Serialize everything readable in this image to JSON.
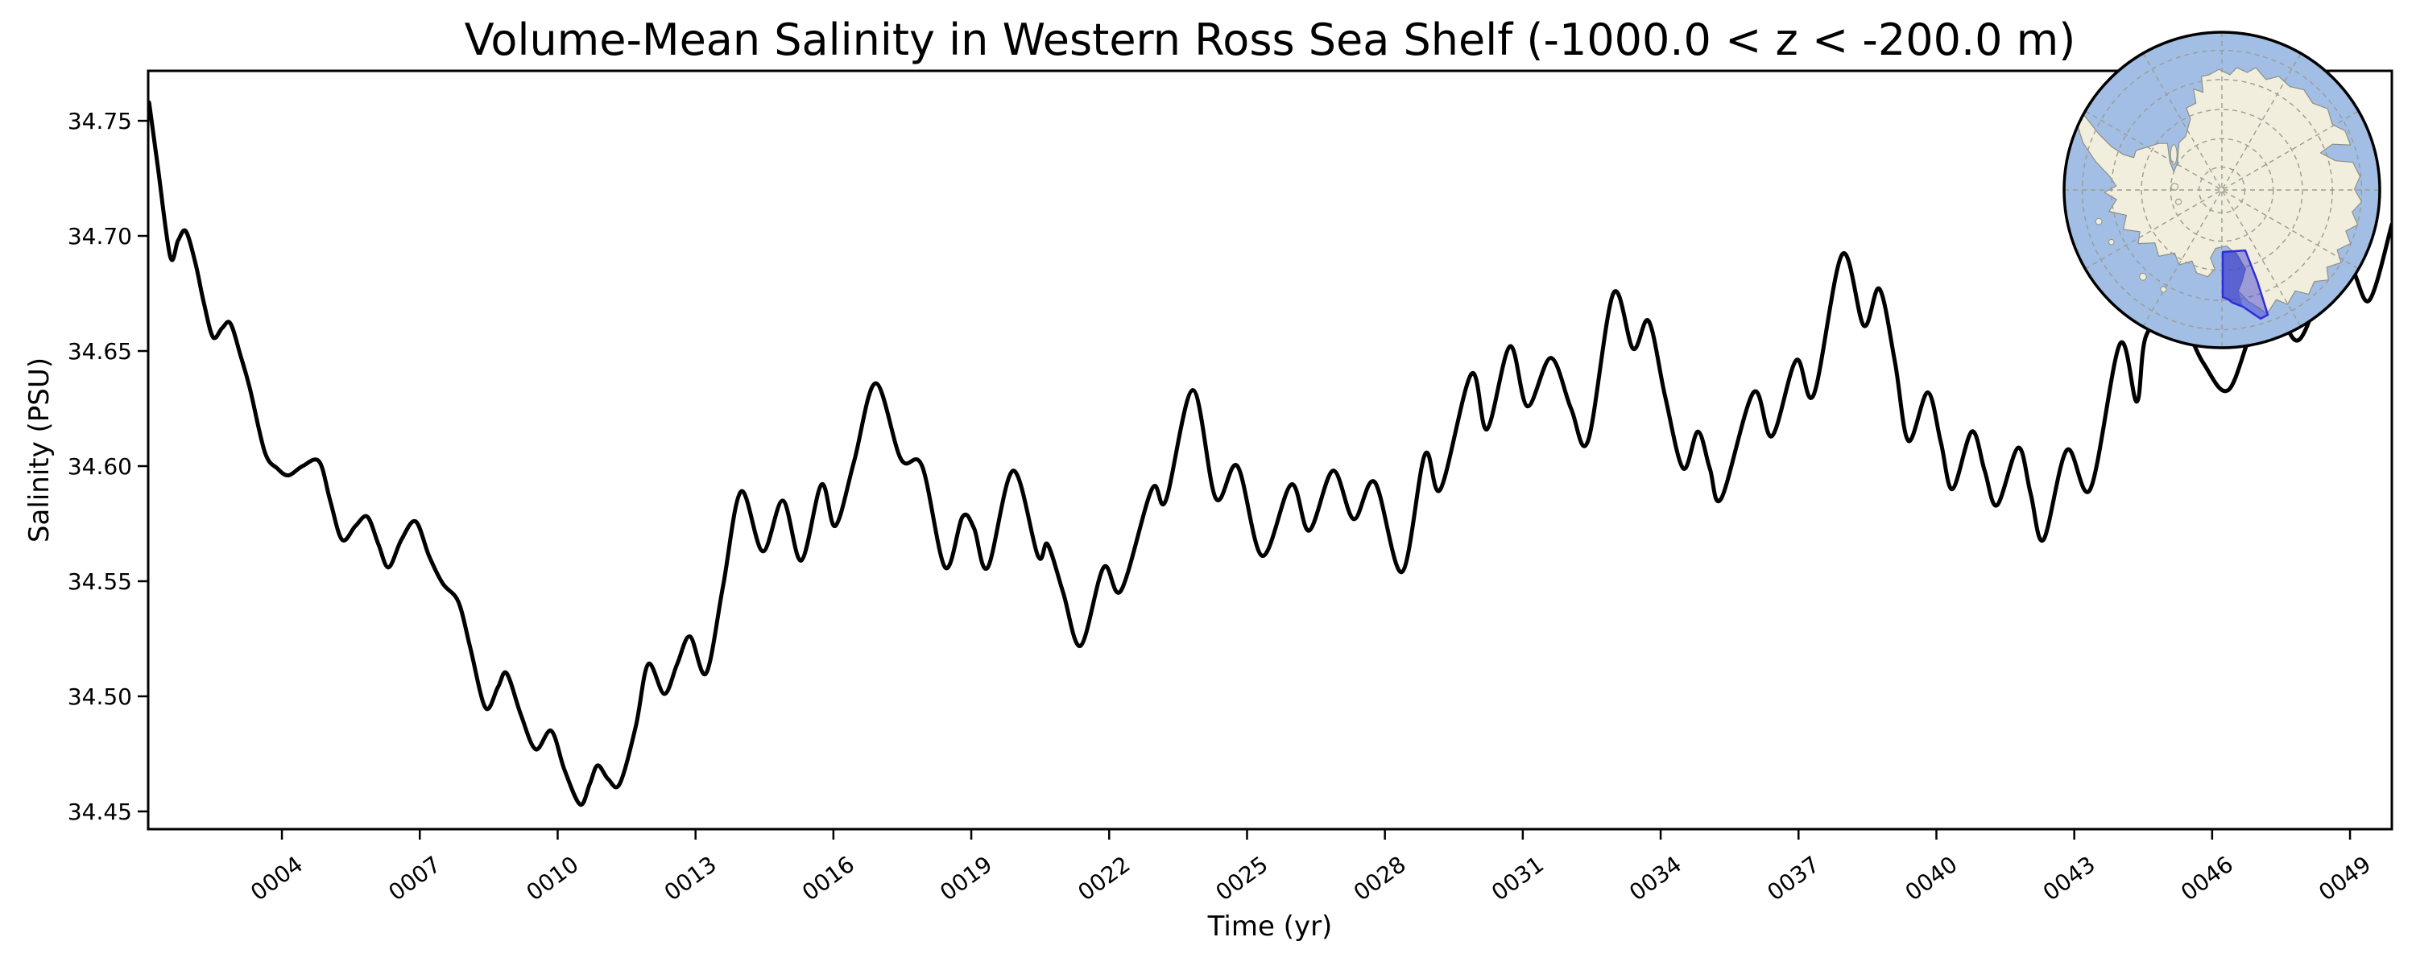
{
  "title": "Volume-Mean Salinity in Western Ross Sea Shelf (-1000.0 < z < -200.0 m)",
  "chart_data": {
    "type": "line",
    "title": "Volume-Mean Salinity in Western Ross Sea Shelf (-1000.0 < z < -200.0 m)",
    "xlabel": "Time (yr)",
    "ylabel": "Salinity (PSU)",
    "xlim": [
      1.09,
      49.91
    ],
    "ylim": [
      34.4423,
      34.7717
    ],
    "x_ticks": [
      4,
      7,
      10,
      13,
      16,
      19,
      22,
      25,
      28,
      31,
      34,
      37,
      40,
      43,
      46,
      49
    ],
    "x_tick_labels": [
      "0004",
      "0007",
      "0010",
      "0013",
      "0016",
      "0019",
      "0022",
      "0025",
      "0028",
      "0031",
      "0034",
      "0037",
      "0040",
      "0043",
      "0046",
      "0049"
    ],
    "y_ticks": [
      34.45,
      34.5,
      34.55,
      34.6,
      34.65,
      34.7,
      34.75
    ],
    "y_tick_labels": [
      "34.45",
      "34.50",
      "34.55",
      "34.60",
      "34.65",
      "34.70",
      "34.75"
    ],
    "grid": false,
    "legend": "none",
    "line_color": "#000000",
    "line_width": 5,
    "series": [
      {
        "name": "volume-mean salinity",
        "units": "PSU",
        "points": [
          [
            1.11,
            34.758
          ],
          [
            1.3,
            34.73
          ],
          [
            1.57,
            34.691
          ],
          [
            1.74,
            34.698
          ],
          [
            1.91,
            34.702
          ],
          [
            2.12,
            34.688
          ],
          [
            2.3,
            34.671
          ],
          [
            2.5,
            34.656
          ],
          [
            2.7,
            34.66
          ],
          [
            2.88,
            34.662
          ],
          [
            3.1,
            34.648
          ],
          [
            3.3,
            34.634
          ],
          [
            3.63,
            34.606
          ],
          [
            3.9,
            34.599
          ],
          [
            4.14,
            34.596
          ],
          [
            4.45,
            34.6
          ],
          [
            4.81,
            34.602
          ],
          [
            5.05,
            34.585
          ],
          [
            5.31,
            34.568
          ],
          [
            5.6,
            34.574
          ],
          [
            5.86,
            34.578
          ],
          [
            6.1,
            34.566
          ],
          [
            6.32,
            34.556
          ],
          [
            6.6,
            34.568
          ],
          [
            6.91,
            34.576
          ],
          [
            7.2,
            34.561
          ],
          [
            7.5,
            34.549
          ],
          [
            7.84,
            34.541
          ],
          [
            8.1,
            34.521
          ],
          [
            8.43,
            34.495
          ],
          [
            8.7,
            34.504
          ],
          [
            8.89,
            34.51
          ],
          [
            9.2,
            34.492
          ],
          [
            9.52,
            34.477
          ],
          [
            9.86,
            34.485
          ],
          [
            10.15,
            34.468
          ],
          [
            10.49,
            34.453
          ],
          [
            10.7,
            34.462
          ],
          [
            10.87,
            34.47
          ],
          [
            11.1,
            34.464
          ],
          [
            11.35,
            34.462
          ],
          [
            11.7,
            34.487
          ],
          [
            11.97,
            34.514
          ],
          [
            12.32,
            34.501
          ],
          [
            12.6,
            34.514
          ],
          [
            12.88,
            34.526
          ],
          [
            13.23,
            34.51
          ],
          [
            13.6,
            34.548
          ],
          [
            13.99,
            34.589
          ],
          [
            14.46,
            34.563
          ],
          [
            14.9,
            34.585
          ],
          [
            15.3,
            34.559
          ],
          [
            15.74,
            34.592
          ],
          [
            16.04,
            34.574
          ],
          [
            16.45,
            34.602
          ],
          [
            16.92,
            34.636
          ],
          [
            17.47,
            34.603
          ],
          [
            17.93,
            34.6
          ],
          [
            18.43,
            34.556
          ],
          [
            18.81,
            34.578
          ],
          [
            19.06,
            34.573
          ],
          [
            19.36,
            34.556
          ],
          [
            19.91,
            34.598
          ],
          [
            20.45,
            34.561
          ],
          [
            20.66,
            34.566
          ],
          [
            21.0,
            34.545
          ],
          [
            21.38,
            34.522
          ],
          [
            21.88,
            34.556
          ],
          [
            22.26,
            34.546
          ],
          [
            22.93,
            34.59
          ],
          [
            23.23,
            34.585
          ],
          [
            23.82,
            34.633
          ],
          [
            24.32,
            34.586
          ],
          [
            24.79,
            34.6
          ],
          [
            25.33,
            34.561
          ],
          [
            25.96,
            34.592
          ],
          [
            26.35,
            34.572
          ],
          [
            26.87,
            34.598
          ],
          [
            27.32,
            34.577
          ],
          [
            27.78,
            34.593
          ],
          [
            28.37,
            34.554
          ],
          [
            28.87,
            34.605
          ],
          [
            29.21,
            34.59
          ],
          [
            29.88,
            34.64
          ],
          [
            30.22,
            34.616
          ],
          [
            30.72,
            34.652
          ],
          [
            31.1,
            34.626
          ],
          [
            31.61,
            34.647
          ],
          [
            32.05,
            34.625
          ],
          [
            32.42,
            34.611
          ],
          [
            32.97,
            34.675
          ],
          [
            33.4,
            34.651
          ],
          [
            33.74,
            34.663
          ],
          [
            34.1,
            34.63
          ],
          [
            34.49,
            34.599
          ],
          [
            34.81,
            34.615
          ],
          [
            35.07,
            34.599
          ],
          [
            35.32,
            34.586
          ],
          [
            36.02,
            34.632
          ],
          [
            36.42,
            34.613
          ],
          [
            36.95,
            34.646
          ],
          [
            37.33,
            34.631
          ],
          [
            37.95,
            34.692
          ],
          [
            38.42,
            34.661
          ],
          [
            38.76,
            34.677
          ],
          [
            39.1,
            34.645
          ],
          [
            39.39,
            34.611
          ],
          [
            39.81,
            34.632
          ],
          [
            40.1,
            34.61
          ],
          [
            40.35,
            34.59
          ],
          [
            40.77,
            34.615
          ],
          [
            41.05,
            34.598
          ],
          [
            41.32,
            34.583
          ],
          [
            41.78,
            34.608
          ],
          [
            42.05,
            34.588
          ],
          [
            42.33,
            34.568
          ],
          [
            42.84,
            34.607
          ],
          [
            43.35,
            34.59
          ],
          [
            43.99,
            34.653
          ],
          [
            44.36,
            34.628
          ],
          [
            44.57,
            34.657
          ],
          [
            45.2,
            34.667
          ],
          [
            45.8,
            34.645
          ],
          [
            46.35,
            34.633
          ],
          [
            46.9,
            34.66
          ],
          [
            47.4,
            34.668
          ],
          [
            47.9,
            34.655
          ],
          [
            48.6,
            34.688
          ],
          [
            49.03,
            34.686
          ],
          [
            49.42,
            34.672
          ],
          [
            49.91,
            34.705
          ]
        ]
      }
    ]
  },
  "inset_map": {
    "kind": "south-polar-stereographic-globe",
    "highlighted_region": "Western Ross Sea Shelf",
    "colors": {
      "ocean": "#a2bee4",
      "land": "#f1eedd",
      "coast": "#8f8f85",
      "graticule": "#9b9b93",
      "region_fill": "rgba(64,64,210,0.48)",
      "region_dark_overlay": "rgba(30,30,190,0.30)",
      "region_edge": "#2e2ed8",
      "border": "#000000"
    }
  }
}
